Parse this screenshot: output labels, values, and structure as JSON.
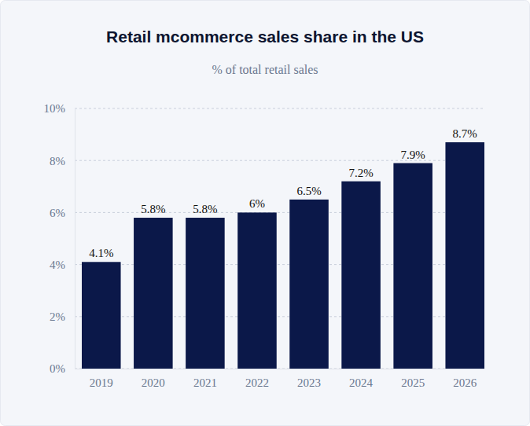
{
  "chart_data": {
    "type": "bar",
    "title": "Retail mcommerce sales share in the US",
    "subtitle": "% of total retail sales",
    "categories": [
      "2019",
      "2020",
      "2021",
      "2022",
      "2023",
      "2024",
      "2025",
      "2026"
    ],
    "values": [
      4.1,
      5.8,
      5.8,
      6,
      6.5,
      7.2,
      7.9,
      8.7
    ],
    "value_labels": [
      "4.1%",
      "5.8%",
      "5.8%",
      "6%",
      "6.5%",
      "7.2%",
      "7.9%",
      "8.7%"
    ],
    "color": "#0b1849",
    "ylim": [
      0,
      10
    ],
    "yticks": [
      {
        "value": 0,
        "label": "0%"
      },
      {
        "value": 2,
        "label": "2%"
      },
      {
        "value": 4,
        "label": "4%"
      },
      {
        "value": 6,
        "label": "6%"
      },
      {
        "value": 8,
        "label": "8%"
      },
      {
        "value": 10,
        "label": "10%"
      }
    ],
    "grid": true,
    "data_labels": true
  }
}
